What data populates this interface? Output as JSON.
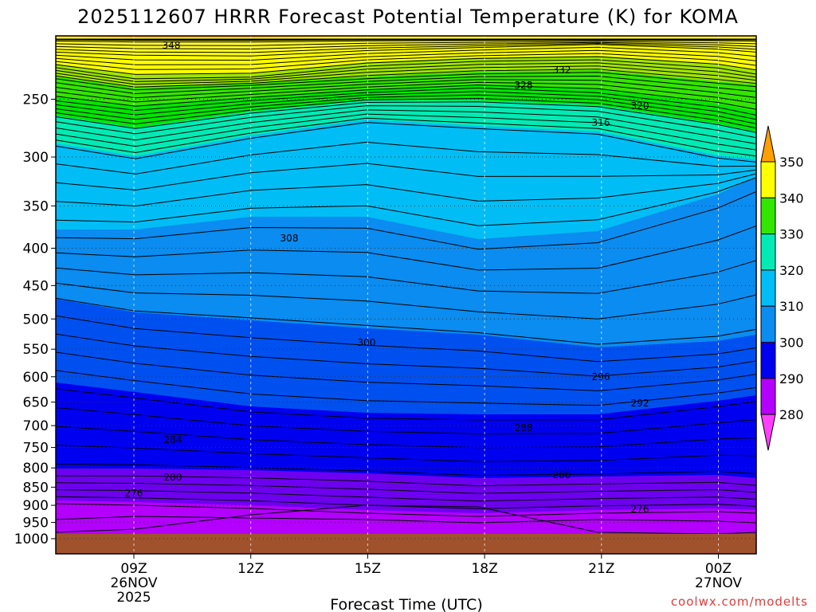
{
  "chart_data": {
    "type": "contour",
    "title": "2025112607 HRRR Forecast Potential Temperature (K) for KOMA",
    "xlabel": "Forecast Time (UTC)",
    "ylabel": "",
    "y_scale": "log",
    "y_inverted": true,
    "y_ticks": [
      250,
      300,
      350,
      400,
      450,
      500,
      550,
      600,
      650,
      700,
      750,
      800,
      850,
      900,
      950,
      1000
    ],
    "x_ticks": [
      {
        "label": "09Z",
        "date": "26NOV",
        "year": "2025",
        "hour": 9
      },
      {
        "label": "12Z",
        "date": "",
        "year": "",
        "hour": 12
      },
      {
        "label": "15Z",
        "date": "",
        "year": "",
        "hour": 15
      },
      {
        "label": "18Z",
        "date": "",
        "year": "",
        "hour": 18
      },
      {
        "label": "21Z",
        "date": "",
        "year": "",
        "hour": 21
      },
      {
        "label": "00Z",
        "date": "27NOV",
        "year": "",
        "hour": 24
      }
    ],
    "x_range_hours": [
      7.0,
      25.0
    ],
    "grid": true,
    "colorbar": {
      "levels": [
        280,
        290,
        300,
        310,
        320,
        330,
        340,
        350
      ],
      "colors": [
        "#ff3fff",
        "#b400ff",
        "#6e00f0",
        "#0000f0",
        "#0050f0",
        "#0a8cf0",
        "#00bef5",
        "#00ebb4",
        "#00e600",
        "#32e600",
        "#a0e600",
        "#ffff00",
        "#fffa28",
        "#ffa000"
      ]
    },
    "contour_labels": [
      "348",
      "332",
      "328",
      "320",
      "316",
      "308",
      "300",
      "296",
      "292",
      "288",
      "284",
      "280",
      "280",
      "276",
      "276"
    ],
    "credit": "coolwx.com/modelts"
  }
}
